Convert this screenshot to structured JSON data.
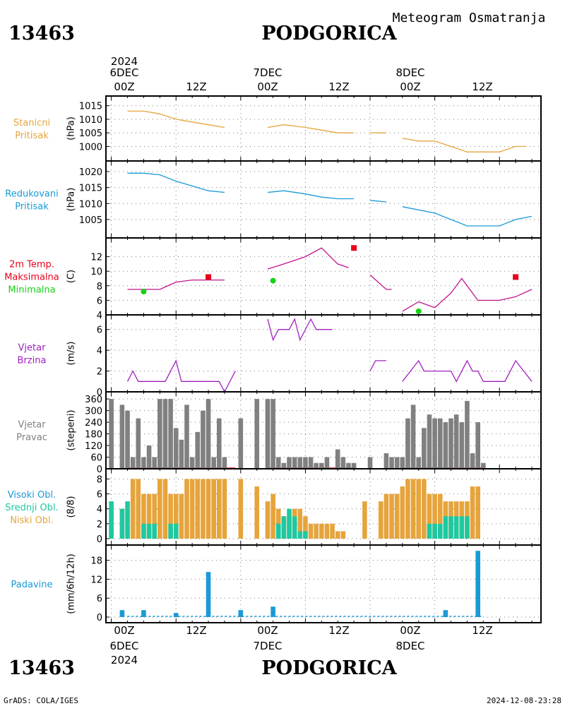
{
  "header": {
    "station_id": "13463",
    "station_name": "PODGORICA",
    "product": "Meteogram Osmatranja",
    "footer_left": "GrADS: COLA/IGES",
    "footer_right": "2024-12-08-23:28"
  },
  "time_axis": {
    "top_year": "2024",
    "days": [
      "6DEC",
      "7DEC",
      "8DEC"
    ],
    "ticks": [
      "00Z",
      "12Z",
      "00Z",
      "12Z",
      "00Z",
      "12Z"
    ],
    "bottom_year": "2024"
  },
  "colors": {
    "orange": "#e6a43c",
    "cyan": "#1a9ad6",
    "red": "#e8001c",
    "green": "#14d214",
    "purple": "#a020c0",
    "magenta": "#c0148c",
    "gray": "#808080",
    "teal": "#1ec8a0"
  },
  "chart_data": [
    {
      "type": "line",
      "panel_label": [
        "Stanicni",
        "Pritisak"
      ],
      "ylabel": "(hPa)",
      "yticks": [
        1000,
        1005,
        1010,
        1015
      ],
      "ylim": [
        997,
        1017
      ],
      "color": "orange",
      "segments": [
        [
          [
            3,
            1013
          ],
          [
            6,
            1013
          ],
          [
            9,
            1012
          ],
          [
            12,
            1010
          ],
          [
            15,
            1009
          ],
          [
            18,
            1008
          ],
          [
            21,
            1007
          ]
        ],
        [
          [
            29,
            1007
          ],
          [
            32,
            1008
          ],
          [
            36,
            1007
          ],
          [
            39,
            1006
          ],
          [
            42,
            1005
          ],
          [
            45,
            1005
          ]
        ],
        [
          [
            48,
            1005
          ],
          [
            51,
            1005
          ]
        ],
        [
          [
            54,
            1003
          ],
          [
            57,
            1002
          ],
          [
            60,
            1002
          ],
          [
            63,
            1000
          ],
          [
            66,
            998
          ],
          [
            69,
            998
          ],
          [
            72,
            998
          ],
          [
            75,
            1000
          ],
          [
            77,
            1000
          ]
        ]
      ]
    },
    {
      "type": "line",
      "panel_label": [
        "Redukovani",
        "Pritisak"
      ],
      "ylabel": "(hPa)",
      "yticks": [
        1005,
        1010,
        1015,
        1020
      ],
      "ylim": [
        1001,
        1022
      ],
      "color": "cyan",
      "segments": [
        [
          [
            3,
            1019.5
          ],
          [
            6,
            1019.5
          ],
          [
            9,
            1019
          ],
          [
            12,
            1017
          ],
          [
            15,
            1015.5
          ],
          [
            18,
            1014
          ],
          [
            21,
            1013.5
          ]
        ],
        [
          [
            29,
            1013.5
          ],
          [
            32,
            1014
          ],
          [
            36,
            1013
          ],
          [
            39,
            1012
          ],
          [
            42,
            1011.5
          ],
          [
            45,
            1011.5
          ]
        ],
        [
          [
            48,
            1011
          ],
          [
            51,
            1010.5
          ]
        ],
        [
          [
            54,
            1009
          ],
          [
            57,
            1008
          ],
          [
            60,
            1007
          ],
          [
            63,
            1005
          ],
          [
            66,
            1003
          ],
          [
            69,
            1003
          ],
          [
            72,
            1003
          ],
          [
            75,
            1005
          ],
          [
            78,
            1006
          ]
        ]
      ]
    },
    {
      "type": "line",
      "panel_label": [
        "2m Temp.",
        "Maksimalna",
        "Minimalna"
      ],
      "panel_label_colors": [
        "red",
        "red",
        "green"
      ],
      "ylabel": "(C)",
      "yticks": [
        4,
        6,
        8,
        10,
        12
      ],
      "ylim": [
        4,
        14
      ],
      "color": "magenta",
      "segments": [
        [
          [
            3,
            7.5
          ],
          [
            6,
            7.5
          ],
          [
            9,
            7.5
          ],
          [
            12,
            8.5
          ],
          [
            15,
            8.8
          ],
          [
            18,
            8.8
          ],
          [
            21,
            8.8
          ]
        ],
        [
          [
            29,
            10.3
          ],
          [
            32,
            11
          ],
          [
            36,
            12
          ],
          [
            39,
            13.2
          ],
          [
            42,
            11
          ],
          [
            44,
            10.5
          ]
        ],
        [
          [
            48,
            9.5
          ],
          [
            51,
            7.5
          ],
          [
            52,
            7.5
          ]
        ],
        [
          [
            54,
            4.5
          ],
          [
            57,
            5.8
          ],
          [
            60,
            5
          ],
          [
            63,
            7
          ],
          [
            65,
            9
          ],
          [
            68,
            6
          ],
          [
            72,
            6
          ],
          [
            75,
            6.5
          ],
          [
            78,
            7.5
          ]
        ]
      ],
      "max_points": [
        [
          18,
          9.2
        ],
        [
          45,
          13.2
        ],
        [
          75,
          9.2
        ]
      ],
      "min_points": [
        [
          6,
          7.2
        ],
        [
          30,
          8.7
        ],
        [
          57,
          4.5
        ]
      ]
    },
    {
      "type": "line",
      "panel_label": [
        "Vjetar",
        "Brzina"
      ],
      "ylabel": "(m/s)",
      "yticks": [
        0,
        2,
        4,
        6
      ],
      "ylim": [
        0,
        7
      ],
      "color": "purple",
      "segments": [
        [
          [
            3,
            1
          ],
          [
            4,
            2
          ],
          [
            5,
            1
          ],
          [
            6,
            1
          ],
          [
            8,
            1
          ],
          [
            10,
            1
          ],
          [
            12,
            3
          ],
          [
            13,
            1
          ],
          [
            16,
            1
          ],
          [
            18,
            1
          ],
          [
            20,
            1
          ],
          [
            21,
            0
          ],
          [
            23,
            2
          ]
        ],
        [
          [
            29,
            7
          ],
          [
            30,
            5
          ],
          [
            31,
            6
          ],
          [
            33,
            6
          ],
          [
            34,
            7
          ],
          [
            35,
            5
          ],
          [
            37,
            7
          ],
          [
            38,
            6
          ],
          [
            41,
            6
          ]
        ],
        [
          [
            48,
            2
          ],
          [
            49,
            3
          ],
          [
            51,
            3
          ]
        ],
        [
          [
            54,
            1
          ],
          [
            57,
            3
          ],
          [
            58,
            2
          ],
          [
            61,
            2
          ],
          [
            63,
            2
          ],
          [
            64,
            1
          ],
          [
            66,
            3
          ],
          [
            67,
            2
          ],
          [
            68,
            2
          ],
          [
            69,
            1
          ],
          [
            73,
            1
          ],
          [
            75,
            3
          ],
          [
            78,
            1
          ]
        ]
      ]
    },
    {
      "type": "bar",
      "panel_label": [
        "Vjetar",
        "Pravac"
      ],
      "ylabel": "(stepeni)",
      "yticks": [
        0,
        60,
        120,
        180,
        240,
        300,
        360
      ],
      "ylim": [
        0,
        375
      ],
      "color": "gray",
      "values": [
        [
          0,
          360
        ],
        [
          2,
          330
        ],
        [
          3,
          300
        ],
        [
          4,
          60
        ],
        [
          5,
          260
        ],
        [
          6,
          60
        ],
        [
          7,
          120
        ],
        [
          8,
          60
        ],
        [
          9,
          360
        ],
        [
          10,
          360
        ],
        [
          11,
          360
        ],
        [
          12,
          210
        ],
        [
          13,
          150
        ],
        [
          14,
          330
        ],
        [
          15,
          60
        ],
        [
          16,
          190
        ],
        [
          17,
          300
        ],
        [
          18,
          360
        ],
        [
          19,
          60
        ],
        [
          20,
          260
        ],
        [
          21,
          60
        ],
        [
          24,
          260
        ],
        [
          27,
          360
        ],
        [
          29,
          360
        ],
        [
          30,
          360
        ],
        [
          31,
          60
        ],
        [
          32,
          30
        ],
        [
          33,
          60
        ],
        [
          34,
          60
        ],
        [
          35,
          60
        ],
        [
          36,
          60
        ],
        [
          37,
          60
        ],
        [
          38,
          30
        ],
        [
          39,
          30
        ],
        [
          40,
          60
        ],
        [
          42,
          100
        ],
        [
          43,
          60
        ],
        [
          44,
          30
        ],
        [
          45,
          30
        ],
        [
          48,
          60
        ],
        [
          51,
          80
        ],
        [
          52,
          60
        ],
        [
          53,
          60
        ],
        [
          54,
          60
        ],
        [
          55,
          260
        ],
        [
          56,
          330
        ],
        [
          57,
          60
        ],
        [
          58,
          210
        ],
        [
          59,
          280
        ],
        [
          60,
          260
        ],
        [
          61,
          260
        ],
        [
          62,
          240
        ],
        [
          63,
          260
        ],
        [
          64,
          280
        ],
        [
          65,
          240
        ],
        [
          66,
          350
        ],
        [
          67,
          80
        ],
        [
          68,
          240
        ],
        [
          69,
          30
        ]
      ],
      "baseline_segments": [
        [
          3,
          23
        ],
        [
          29,
          45
        ],
        [
          54,
          69
        ]
      ]
    },
    {
      "type": "bar",
      "panel_label": [
        "Visoki Obl.",
        "Srednji Obl.",
        "Niski Obl."
      ],
      "panel_label_colors": [
        "cyan",
        "teal",
        "orange"
      ],
      "ylabel": "(8/8)",
      "yticks": [
        0,
        2,
        4,
        6,
        8
      ],
      "ylim": [
        0,
        8.8
      ],
      "series": [
        {
          "name": "Niski Obl.",
          "color": "orange",
          "values": [
            [
              0,
              3
            ],
            [
              2,
              4
            ],
            [
              3,
              0
            ],
            [
              4,
              8
            ],
            [
              5,
              8
            ],
            [
              6,
              6
            ],
            [
              7,
              6
            ],
            [
              8,
              6
            ],
            [
              9,
              8
            ],
            [
              10,
              8
            ],
            [
              11,
              6
            ],
            [
              12,
              6
            ],
            [
              13,
              6
            ],
            [
              14,
              8
            ],
            [
              15,
              8
            ],
            [
              16,
              8
            ],
            [
              17,
              8
            ],
            [
              18,
              8
            ],
            [
              19,
              8
            ],
            [
              20,
              8
            ],
            [
              21,
              8
            ],
            [
              24,
              8
            ],
            [
              27,
              7
            ],
            [
              29,
              5
            ],
            [
              30,
              6
            ],
            [
              31,
              4
            ],
            [
              32,
              3
            ],
            [
              33,
              3
            ],
            [
              34,
              4
            ],
            [
              35,
              4
            ],
            [
              36,
              3
            ],
            [
              37,
              2
            ],
            [
              38,
              2
            ],
            [
              39,
              2
            ],
            [
              40,
              2
            ],
            [
              41,
              2
            ],
            [
              42,
              1
            ],
            [
              43,
              1
            ],
            [
              47,
              5
            ],
            [
              50,
              5
            ],
            [
              51,
              6
            ],
            [
              52,
              6
            ],
            [
              53,
              6
            ],
            [
              54,
              7
            ],
            [
              55,
              8
            ],
            [
              56,
              8
            ],
            [
              57,
              8
            ],
            [
              58,
              8
            ],
            [
              59,
              6
            ],
            [
              60,
              6
            ],
            [
              61,
              6
            ],
            [
              62,
              5
            ],
            [
              63,
              5
            ],
            [
              64,
              5
            ],
            [
              65,
              5
            ],
            [
              66,
              5
            ],
            [
              67,
              7
            ],
            [
              68,
              7
            ]
          ]
        },
        {
          "name": "Srednji Obl.",
          "color": "teal",
          "values": [
            [
              0,
              5
            ],
            [
              2,
              4
            ],
            [
              3,
              5
            ],
            [
              4,
              0
            ],
            [
              6,
              2
            ],
            [
              7,
              2
            ],
            [
              8,
              2
            ],
            [
              11,
              2
            ],
            [
              12,
              2
            ],
            [
              31,
              2
            ],
            [
              32,
              3
            ],
            [
              33,
              4
            ],
            [
              34,
              3
            ],
            [
              35,
              1
            ],
            [
              36,
              1
            ],
            [
              59,
              2
            ],
            [
              60,
              2
            ],
            [
              61,
              2
            ],
            [
              62,
              3
            ],
            [
              63,
              3
            ],
            [
              64,
              3
            ],
            [
              65,
              3
            ],
            [
              66,
              3
            ]
          ]
        },
        {
          "name": "Visoki Obl.",
          "color": "cyan",
          "values": []
        }
      ]
    },
    {
      "type": "bar",
      "panel_label": [
        "Padavine"
      ],
      "ylabel": "(mm/6h/12h)",
      "yticks": [
        0,
        6,
        12,
        18
      ],
      "ylim": [
        0,
        21.5
      ],
      "color": "cyan",
      "values": [
        [
          2,
          2.2
        ],
        [
          6,
          2.2
        ],
        [
          12,
          1.3
        ],
        [
          18,
          14.3
        ],
        [
          24,
          2.2
        ],
        [
          30,
          3.3
        ],
        [
          62,
          2.2
        ],
        [
          68,
          21
        ]
      ],
      "trace_segments": [
        [
          3,
          69
        ]
      ]
    }
  ]
}
